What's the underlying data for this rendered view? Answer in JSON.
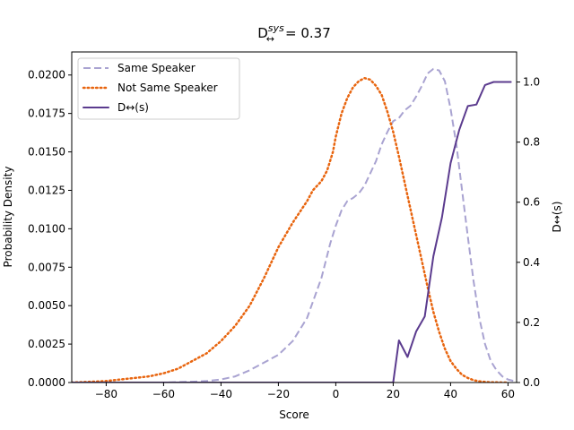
{
  "chart_data": {
    "type": "line",
    "title": {
      "main": "D",
      "superscript": "sys",
      "subscript": "↔",
      "value_text": "= 0.37"
    },
    "xlabel": "Score",
    "ylabel": "Probability Density",
    "y2label": "D↔(s)",
    "xlim": [
      -92,
      63
    ],
    "ylim": [
      0,
      0.0215
    ],
    "y2lim": [
      0,
      1.1
    ],
    "x_ticks": [
      -80,
      -60,
      -40,
      -20,
      0,
      20,
      40,
      60
    ],
    "x_tick_labels": [
      "−80",
      "−60",
      "−40",
      "−20",
      "0",
      "20",
      "40",
      "60"
    ],
    "y_ticks": [
      0,
      0.0025,
      0.005,
      0.0075,
      0.01,
      0.0125,
      0.015,
      0.0175,
      0.02
    ],
    "y_tick_labels": [
      "0.0000",
      "0.0025",
      "0.0050",
      "0.0075",
      "0.0100",
      "0.0125",
      "0.0150",
      "0.0175",
      "0.0200"
    ],
    "y2_ticks": [
      0,
      0.2,
      0.4,
      0.6,
      0.8,
      1.0
    ],
    "y2_tick_labels": [
      "0.0",
      "0.2",
      "0.4",
      "0.6",
      "0.8",
      "1.0"
    ],
    "grid": false,
    "legend_position": "top-left",
    "series": [
      {
        "name": "Same Speaker",
        "axis": "left",
        "style": "dashed",
        "color": "#a9a3d1",
        "x": [
          -92,
          -60,
          -50,
          -45,
          -40,
          -35,
          -30,
          -25,
          -20,
          -15,
          -10,
          -5,
          -2,
          0,
          2,
          4,
          6,
          8,
          10,
          12,
          14,
          16,
          18,
          20,
          22,
          24,
          26,
          28,
          30,
          32,
          34,
          36,
          38,
          40,
          42,
          44,
          46,
          48,
          50,
          52,
          54,
          56,
          58,
          60,
          62
        ],
        "y": [
          0,
          0,
          5e-05,
          0.0001,
          0.0002,
          0.0004,
          0.0008,
          0.0013,
          0.0018,
          0.0027,
          0.0042,
          0.0068,
          0.009,
          0.0102,
          0.0112,
          0.0118,
          0.012,
          0.0123,
          0.0128,
          0.0136,
          0.0144,
          0.0155,
          0.0163,
          0.017,
          0.0172,
          0.0177,
          0.018,
          0.0186,
          0.0193,
          0.0201,
          0.0204,
          0.0203,
          0.0196,
          0.0178,
          0.0155,
          0.0125,
          0.0095,
          0.0066,
          0.0042,
          0.0025,
          0.0014,
          0.0008,
          0.0004,
          0.0002,
          0.0001
        ]
      },
      {
        "name": "Not Same Speaker",
        "axis": "left",
        "style": "dotted",
        "color": "#e8650f",
        "x": [
          -92,
          -85,
          -80,
          -75,
          -70,
          -65,
          -60,
          -55,
          -50,
          -45,
          -40,
          -35,
          -30,
          -25,
          -20,
          -15,
          -10,
          -8,
          -5,
          -3,
          -1,
          0,
          2,
          4,
          6,
          8,
          10,
          12,
          14,
          16,
          18,
          20,
          22,
          24,
          26,
          28,
          30,
          32,
          34,
          36,
          38,
          40,
          42,
          44,
          46,
          48,
          50,
          52,
          54,
          56,
          58,
          60
        ],
        "y": [
          0,
          5e-05,
          0.0001,
          0.0002,
          0.0003,
          0.0004,
          0.0006,
          0.0009,
          0.0014,
          0.0019,
          0.0027,
          0.0037,
          0.005,
          0.0068,
          0.0088,
          0.0104,
          0.0118,
          0.0125,
          0.0131,
          0.0138,
          0.015,
          0.016,
          0.0175,
          0.0185,
          0.0192,
          0.0196,
          0.0198,
          0.0197,
          0.0193,
          0.0187,
          0.0176,
          0.0163,
          0.0147,
          0.013,
          0.0113,
          0.0096,
          0.0079,
          0.0062,
          0.0046,
          0.0033,
          0.0022,
          0.0014,
          0.0009,
          0.0005,
          0.0003,
          0.00015,
          8e-05,
          4e-05,
          2e-05,
          1e-05,
          0,
          0
        ]
      },
      {
        "name": "D↔(s)",
        "axis": "right",
        "style": "solid",
        "color": "#5b3b8e",
        "x": [
          -92,
          20,
          22,
          25,
          28,
          31,
          34,
          37,
          40,
          43,
          46,
          49,
          52,
          55,
          58,
          61
        ],
        "y": [
          0,
          0,
          0.14,
          0.085,
          0.17,
          0.22,
          0.42,
          0.55,
          0.73,
          0.84,
          0.92,
          0.925,
          0.99,
          1.0,
          1.0,
          1.0
        ]
      }
    ]
  }
}
